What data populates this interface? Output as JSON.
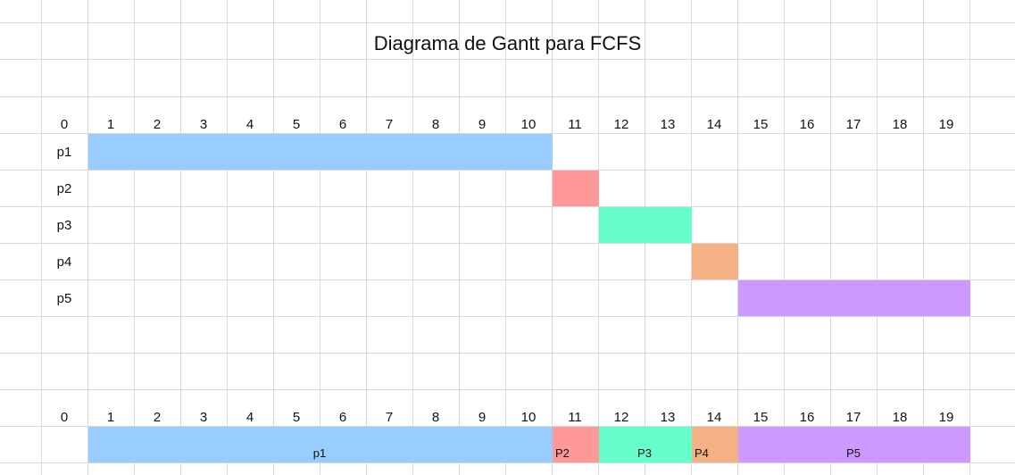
{
  "title": "Diagrama de Gantt para FCFS",
  "colors": {
    "p1": "#99ccff",
    "p2": "#ff9999",
    "p3": "#66ffcc",
    "p4": "#f4b183",
    "p5": "#cc99ff",
    "grid": "#d9d9d9"
  },
  "chart_data": [
    {
      "type": "gantt",
      "title": "Diagrama de Gantt para FCFS",
      "time_ticks": [
        0,
        1,
        2,
        3,
        4,
        5,
        6,
        7,
        8,
        9,
        10,
        11,
        12,
        13,
        14,
        15,
        16,
        17,
        18,
        19
      ],
      "rows": [
        {
          "label": "p1",
          "start": 1,
          "end": 11,
          "color": "#99ccff"
        },
        {
          "label": "p2",
          "start": 11,
          "end": 12,
          "color": "#ff9999"
        },
        {
          "label": "p3",
          "start": 12,
          "end": 14,
          "color": "#66ffcc"
        },
        {
          "label": "p4",
          "start": 14,
          "end": 15,
          "color": "#f4b183"
        },
        {
          "label": "p5",
          "start": 15,
          "end": 20,
          "color": "#cc99ff"
        }
      ]
    },
    {
      "type": "timeline",
      "time_ticks": [
        0,
        1,
        2,
        3,
        4,
        5,
        6,
        7,
        8,
        9,
        10,
        11,
        12,
        13,
        14,
        15,
        16,
        17,
        18,
        19
      ],
      "segments": [
        {
          "label": "p1",
          "start": 1,
          "end": 11,
          "color": "#99ccff"
        },
        {
          "label": "P2",
          "start": 11,
          "end": 12,
          "color": "#ff9999"
        },
        {
          "label": "P3",
          "start": 12,
          "end": 14,
          "color": "#66ffcc"
        },
        {
          "label": "P4",
          "start": 14,
          "end": 15,
          "color": "#f4b183"
        },
        {
          "label": "P5",
          "start": 15,
          "end": 20,
          "color": "#cc99ff"
        }
      ]
    }
  ]
}
